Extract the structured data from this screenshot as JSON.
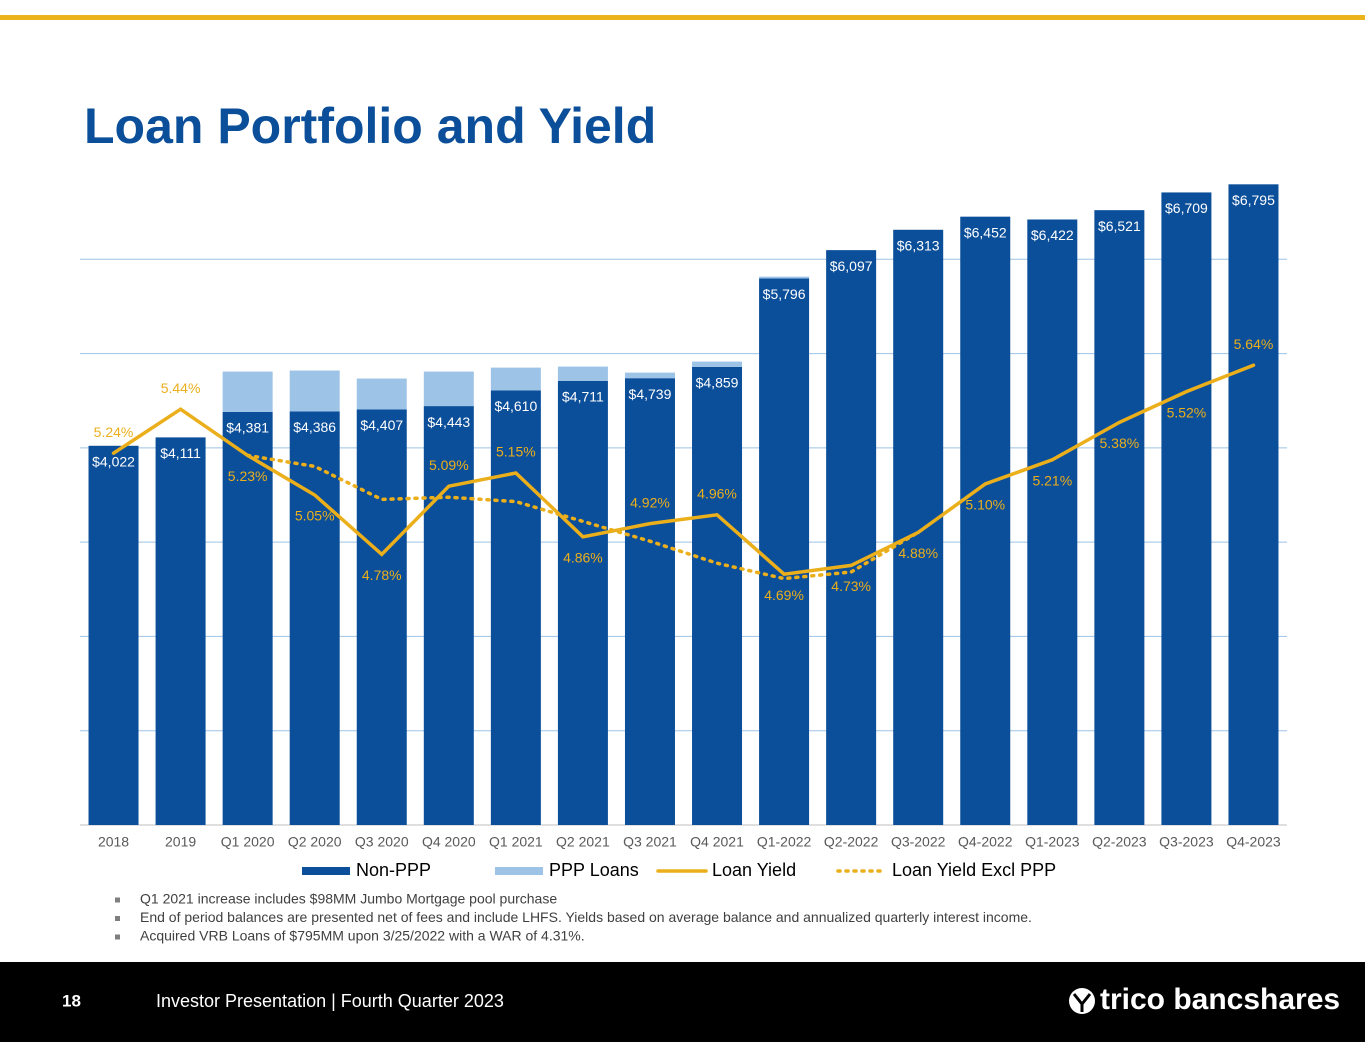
{
  "header": {
    "title": "Loan Portfolio and Yield"
  },
  "chart_data": {
    "type": "bar",
    "stacked": true,
    "grid": true,
    "categories": [
      "2018",
      "2019",
      "Q1 2020",
      "Q2 2020",
      "Q3 2020",
      "Q4 2020",
      "Q1 2021",
      "Q2 2021",
      "Q3 2021",
      "Q4 2021",
      "Q1-2022",
      "Q2-2022",
      "Q3-2022",
      "Q4-2022",
      "Q1-2023",
      "Q2-2023",
      "Q3-2023",
      "Q4-2023"
    ],
    "ylim": [
      0,
      7000
    ],
    "yticks": [
      0,
      1000,
      2000,
      3000,
      4000,
      5000,
      6000
    ],
    "y2lim": [
      3.55,
      6.55
    ],
    "series": [
      {
        "name": "Non-PPP",
        "color": "#0b4e99",
        "values": [
          4022,
          4111,
          4381,
          4386,
          4407,
          4443,
          4610,
          4711,
          4739,
          4859,
          5796,
          6097,
          6313,
          6452,
          6422,
          6521,
          6709,
          6795
        ],
        "value_labels": [
          "$4,022",
          "$4,111",
          "$4,381",
          "$4,386",
          "$4,407",
          "$4,443",
          "$4,610",
          "$4,711",
          "$4,739",
          "$4,859",
          "$5,796",
          "$6,097",
          "$6,313",
          "$6,452",
          "$6,422",
          "$6,521",
          "$6,709",
          "$6,795"
        ]
      },
      {
        "name": "PPP Loans",
        "color": "#9dc3e6",
        "values": [
          0,
          0,
          428,
          434,
          328,
          366,
          241,
          151,
          59,
          56,
          20,
          0,
          0,
          0,
          0,
          0,
          0,
          0
        ]
      },
      {
        "name": "Loan Yield",
        "type": "line",
        "axis": "y2",
        "color": "#ebaf1c",
        "style": "solid",
        "values": [
          5.24,
          5.44,
          5.23,
          5.05,
          4.78,
          5.09,
          5.15,
          4.86,
          4.92,
          4.96,
          4.69,
          4.73,
          4.88,
          5.1,
          5.21,
          5.38,
          5.52,
          5.64
        ],
        "value_labels": [
          "5.24%",
          "5.44%",
          "5.23%",
          "5.05%",
          "4.78%",
          "5.09%",
          "5.15%",
          "4.86%",
          "4.92%",
          "4.96%",
          "4.69%",
          "4.73%",
          "4.88%",
          "5.10%",
          "5.21%",
          "5.38%",
          "5.52%",
          "5.64%"
        ]
      },
      {
        "name": "Loan Yield Excl PPP",
        "type": "line",
        "axis": "y2",
        "color": "#ebaf1c",
        "style": "dotted",
        "values": [
          null,
          null,
          5.23,
          5.18,
          5.03,
          5.04,
          5.02,
          4.93,
          4.84,
          4.74,
          4.67,
          4.7,
          4.88,
          null,
          null,
          null,
          null,
          null
        ]
      }
    ]
  },
  "footnotes": [
    "Q1 2021 increase includes $98MM Jumbo Mortgage pool purchase",
    "End of period balances are presented net of fees and include LHFS.  Yields based on average balance and annualized quarterly interest income.",
    "Acquired VRB Loans of $795MM upon 3/25/2022 with a WAR of 4.31%."
  ],
  "footer": {
    "page": "18",
    "text": "Investor Presentation | Fourth Quarter 2023",
    "logo": "trico bancshares"
  }
}
